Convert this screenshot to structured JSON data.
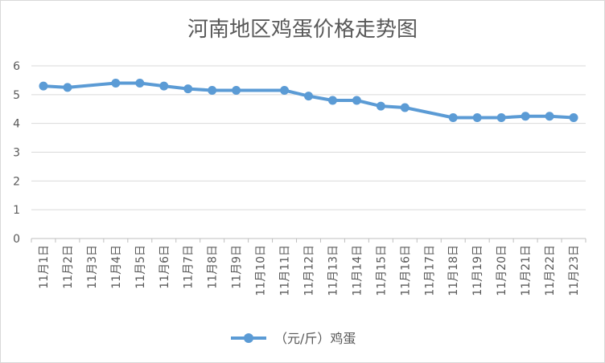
{
  "chart_data": {
    "type": "line",
    "title": "河南地区鸡蛋价格走势图",
    "xlabel": "",
    "ylabel": "",
    "ylim": [
      0,
      6
    ],
    "yticks": [
      0,
      1,
      2,
      3,
      4,
      5,
      6
    ],
    "grid": true,
    "legend_position": "bottom",
    "color": "#5b9bd5",
    "categories": [
      "11月1日",
      "11月2日",
      "11月3日",
      "11月4日",
      "11月5日",
      "11月6日",
      "11月7日",
      "11月8日",
      "11月9日",
      "11月10日",
      "11月11日",
      "11月12日",
      "11月13日",
      "11月14日",
      "11月15日",
      "11月16日",
      "11月17日",
      "11月18日",
      "11月19日",
      "11月20日",
      "11月21日",
      "11月22日",
      "11月23日"
    ],
    "series": [
      {
        "name": "（元/斤）鸡蛋",
        "values": [
          5.3,
          5.25,
          null,
          5.4,
          5.4,
          5.3,
          5.2,
          5.15,
          5.15,
          null,
          5.15,
          4.95,
          4.8,
          4.8,
          4.6,
          4.55,
          null,
          4.2,
          4.2,
          4.2,
          4.25,
          4.25,
          4.2
        ]
      }
    ]
  }
}
